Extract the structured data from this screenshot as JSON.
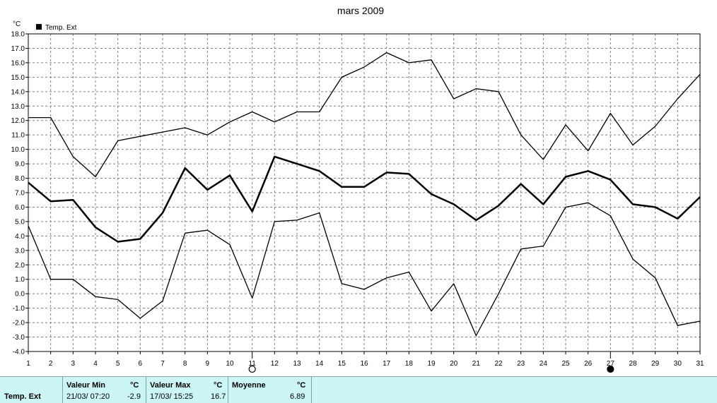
{
  "chart_data": {
    "type": "line",
    "title": "mars 2009",
    "ylabel": "°C",
    "xlabel": "",
    "legend": {
      "label": "Temp. Ext",
      "placement": "top-left"
    },
    "ylim": [
      -4.0,
      18.0
    ],
    "ystep": 1.0,
    "y_tick_labels": [
      "-4.0",
      "-3.0",
      "-2.0",
      "-1.0",
      "0.0",
      "1.0",
      "2.0",
      "3.0",
      "4.0",
      "5.0",
      "6.0",
      "7.0",
      "8.0",
      "9.0",
      "10.0",
      "11.0",
      "12.0",
      "13.0",
      "14.0",
      "15.0",
      "16.0",
      "17.0",
      "18.0"
    ],
    "x": [
      1,
      2,
      3,
      4,
      5,
      6,
      7,
      8,
      9,
      10,
      11,
      12,
      13,
      14,
      15,
      16,
      17,
      18,
      19,
      20,
      21,
      22,
      23,
      24,
      25,
      26,
      27,
      28,
      29,
      30,
      31
    ],
    "grid": true,
    "markers": [
      {
        "day": 11,
        "symbol": "open-circle"
      },
      {
        "day": 27,
        "symbol": "filled-circle"
      }
    ],
    "series": [
      {
        "role": "max",
        "values": [
          12.2,
          12.2,
          9.5,
          8.1,
          10.6,
          10.9,
          11.2,
          11.5,
          11.0,
          11.9,
          12.6,
          11.9,
          12.6,
          12.6,
          15.0,
          15.7,
          16.7,
          16.0,
          16.2,
          13.5,
          14.2,
          14.0,
          11.0,
          9.3,
          11.7,
          9.9,
          12.5,
          10.3,
          11.6,
          13.5,
          15.2
        ]
      },
      {
        "role": "mean",
        "values": [
          7.7,
          6.4,
          6.5,
          4.6,
          3.6,
          3.8,
          5.6,
          8.7,
          7.2,
          8.2,
          5.7,
          9.5,
          9.0,
          8.5,
          7.4,
          7.4,
          8.4,
          8.3,
          6.9,
          6.2,
          5.1,
          6.1,
          7.6,
          6.2,
          8.1,
          8.5,
          7.9,
          6.2,
          6.0,
          5.2,
          6.7
        ]
      },
      {
        "role": "min",
        "values": [
          4.7,
          1.0,
          1.0,
          -0.2,
          -0.4,
          -1.7,
          -0.5,
          4.2,
          4.4,
          3.4,
          -0.3,
          5.0,
          5.1,
          5.6,
          0.7,
          0.3,
          1.1,
          1.5,
          -1.2,
          0.7,
          -2.9,
          0.0,
          3.1,
          3.3,
          6.0,
          6.3,
          5.4,
          2.4,
          1.1,
          -2.2,
          -1.9
        ]
      }
    ]
  },
  "stats": {
    "row_label": "Temp. Ext",
    "min": {
      "header": "Valeur Min",
      "unit": "°C",
      "datetime": "21/03/  07:20",
      "value": "-2.9"
    },
    "max": {
      "header": "Valeur Max",
      "unit": "°C",
      "datetime": "17/03/  15:25",
      "value": "16.7"
    },
    "mean": {
      "header": "Moyenne",
      "unit": "°C",
      "value": "6.89"
    }
  },
  "colors": {
    "line": "#000000",
    "grid": "#808080",
    "panel": "#ccf5f5"
  }
}
